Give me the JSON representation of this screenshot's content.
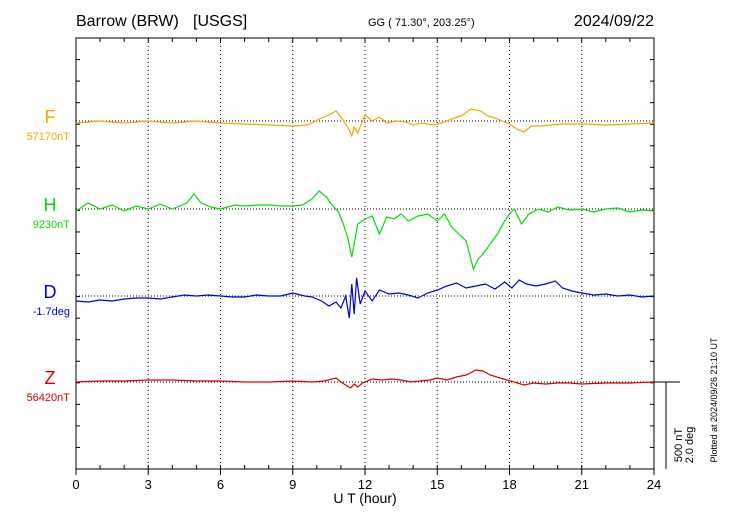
{
  "header": {
    "station": "Barrow (BRW)",
    "network": "[USGS]",
    "coords_label": "GG ( 71.30°, 203.25°)",
    "date": "2024/09/22"
  },
  "footer": {
    "plotted_note": "Plotted at 2024/09/26 21:10 UT"
  },
  "scale_bar": {
    "nt_label": "500 nT",
    "deg_label": "2.0 deg",
    "nt_value": 500,
    "deg_value": 2.0
  },
  "chart_data": {
    "type": "line",
    "title": "Barrow (BRW)  [USGS]",
    "xlabel": "U T (hour)",
    "ylabel": "",
    "xlim": [
      0,
      24
    ],
    "x_ticks": [
      0,
      3,
      6,
      9,
      12,
      15,
      18,
      21,
      24
    ],
    "x_tick_labels": [
      "0",
      "3",
      "6",
      "9",
      "12",
      "15",
      "18",
      "21",
      "24"
    ],
    "grid": true,
    "series": [
      {
        "name": "F",
        "baseline_label": "57170nT",
        "color": "#f0a800",
        "points": [
          [
            0,
            -2
          ],
          [
            1,
            0
          ],
          [
            2,
            -2
          ],
          [
            3,
            0
          ],
          [
            4,
            -2
          ],
          [
            5,
            0
          ],
          [
            6,
            -2
          ],
          [
            7,
            -3
          ],
          [
            8,
            -4
          ],
          [
            9,
            -5
          ],
          [
            9.6,
            -4
          ],
          [
            10.2,
            3
          ],
          [
            10.5,
            6
          ],
          [
            10.8,
            10
          ],
          [
            11.0,
            4
          ],
          [
            11.2,
            -3
          ],
          [
            11.35,
            -9
          ],
          [
            11.45,
            -15
          ],
          [
            11.55,
            -6
          ],
          [
            11.7,
            -12
          ],
          [
            11.85,
            -3
          ],
          [
            12.0,
            6
          ],
          [
            12.3,
            0
          ],
          [
            12.6,
            4
          ],
          [
            12.9,
            -2
          ],
          [
            13.3,
            0
          ],
          [
            13.7,
            -1
          ],
          [
            14.0,
            -4
          ],
          [
            14.4,
            -2
          ],
          [
            14.8,
            -4
          ],
          [
            15.2,
            -2
          ],
          [
            15.6,
            2
          ],
          [
            16.0,
            5
          ],
          [
            16.4,
            12
          ],
          [
            16.8,
            10
          ],
          [
            17.1,
            5
          ],
          [
            17.4,
            3
          ],
          [
            17.7,
            0
          ],
          [
            18.0,
            -3
          ],
          [
            18.3,
            -8
          ],
          [
            18.6,
            -11
          ],
          [
            18.9,
            -5
          ],
          [
            19.3,
            -5
          ],
          [
            19.7,
            -4
          ],
          [
            20.2,
            -3
          ],
          [
            20.7,
            -3
          ],
          [
            21.2,
            -3
          ],
          [
            22,
            -4
          ],
          [
            23,
            -3
          ],
          [
            24,
            -2
          ]
        ]
      },
      {
        "name": "H",
        "baseline_label": "9230nT",
        "color": "#00dd00",
        "points": [
          [
            0,
            -2
          ],
          [
            0.5,
            6
          ],
          [
            1,
            0
          ],
          [
            1.5,
            4
          ],
          [
            2,
            -2
          ],
          [
            2.5,
            3
          ],
          [
            3,
            0
          ],
          [
            3.5,
            5
          ],
          [
            4,
            0
          ],
          [
            4.6,
            6
          ],
          [
            4.9,
            15
          ],
          [
            5.2,
            6
          ],
          [
            5.6,
            2
          ],
          [
            6,
            0
          ],
          [
            6.6,
            4
          ],
          [
            7,
            3
          ],
          [
            7.6,
            4
          ],
          [
            8,
            4
          ],
          [
            8.6,
            3
          ],
          [
            9,
            3
          ],
          [
            9.4,
            4
          ],
          [
            9.8,
            10
          ],
          [
            10.1,
            18
          ],
          [
            10.4,
            12
          ],
          [
            10.6,
            5
          ],
          [
            10.9,
            -3
          ],
          [
            11.1,
            -15
          ],
          [
            11.3,
            -30
          ],
          [
            11.45,
            -48
          ],
          [
            11.55,
            -35
          ],
          [
            11.7,
            -15
          ],
          [
            12.0,
            -10
          ],
          [
            12.3,
            -7
          ],
          [
            12.6,
            -25
          ],
          [
            12.9,
            -8
          ],
          [
            13.2,
            -10
          ],
          [
            13.5,
            -5
          ],
          [
            13.8,
            -12
          ],
          [
            14.2,
            -7
          ],
          [
            14.6,
            -5
          ],
          [
            15.0,
            -12
          ],
          [
            15.3,
            -5
          ],
          [
            15.6,
            -18
          ],
          [
            15.9,
            -25
          ],
          [
            16.2,
            -32
          ],
          [
            16.5,
            -60
          ],
          [
            16.7,
            -50
          ],
          [
            16.9,
            -45
          ],
          [
            17.2,
            -35
          ],
          [
            17.5,
            -25
          ],
          [
            17.8,
            -12
          ],
          [
            18.0,
            -5
          ],
          [
            18.2,
            0
          ],
          [
            18.5,
            -15
          ],
          [
            18.8,
            -5
          ],
          [
            19.2,
            0
          ],
          [
            19.6,
            -3
          ],
          [
            20.0,
            2
          ],
          [
            20.5,
            -1
          ],
          [
            21.0,
            0
          ],
          [
            21.5,
            -3
          ],
          [
            22,
            0
          ],
          [
            22.5,
            1
          ],
          [
            23,
            -3
          ],
          [
            23.5,
            -1
          ],
          [
            24,
            -2
          ]
        ]
      },
      {
        "name": "D",
        "baseline_label": "-1.7deg",
        "color": "#0000dd",
        "points": [
          [
            0,
            -5
          ],
          [
            0.5,
            -6
          ],
          [
            1,
            -4
          ],
          [
            1.5,
            -5
          ],
          [
            2,
            -3
          ],
          [
            2.5,
            -2
          ],
          [
            3,
            -2
          ],
          [
            3.5,
            -3
          ],
          [
            4,
            -1
          ],
          [
            4.5,
            1
          ],
          [
            5,
            0
          ],
          [
            5.5,
            1
          ],
          [
            6,
            0
          ],
          [
            6.5,
            -1
          ],
          [
            7,
            -1
          ],
          [
            7.5,
            1
          ],
          [
            8,
            0
          ],
          [
            8.5,
            0
          ],
          [
            9,
            3
          ],
          [
            9.5,
            0
          ],
          [
            9.8,
            -1
          ],
          [
            10.2,
            -5
          ],
          [
            10.5,
            -10
          ],
          [
            10.8,
            -6
          ],
          [
            11.0,
            -12
          ],
          [
            11.2,
            0
          ],
          [
            11.35,
            -22
          ],
          [
            11.45,
            12
          ],
          [
            11.55,
            -18
          ],
          [
            11.65,
            18
          ],
          [
            11.8,
            -8
          ],
          [
            12.0,
            5
          ],
          [
            12.3,
            -5
          ],
          [
            12.6,
            6
          ],
          [
            13.0,
            2
          ],
          [
            13.4,
            3
          ],
          [
            13.8,
            1
          ],
          [
            14.2,
            -2
          ],
          [
            14.6,
            3
          ],
          [
            15.0,
            6
          ],
          [
            15.4,
            10
          ],
          [
            15.8,
            13
          ],
          [
            16.2,
            8
          ],
          [
            16.6,
            10
          ],
          [
            17.0,
            12
          ],
          [
            17.4,
            7
          ],
          [
            17.8,
            14
          ],
          [
            18.1,
            8
          ],
          [
            18.4,
            16
          ],
          [
            18.7,
            12
          ],
          [
            19.1,
            10
          ],
          [
            19.5,
            12
          ],
          [
            19.9,
            15
          ],
          [
            20.2,
            8
          ],
          [
            20.6,
            5
          ],
          [
            21.0,
            3
          ],
          [
            21.5,
            1
          ],
          [
            22,
            2
          ],
          [
            22.5,
            0
          ],
          [
            23,
            1
          ],
          [
            23.5,
            -1
          ],
          [
            24,
            0
          ]
        ]
      },
      {
        "name": "Z",
        "baseline_label": "56420nT",
        "color": "#dd0000",
        "points": [
          [
            0,
            0
          ],
          [
            1,
            1
          ],
          [
            2,
            1
          ],
          [
            3,
            2
          ],
          [
            4,
            2
          ],
          [
            5,
            1
          ],
          [
            6,
            1
          ],
          [
            7,
            0
          ],
          [
            8,
            0
          ],
          [
            9,
            1
          ],
          [
            9.8,
            0
          ],
          [
            10.3,
            1
          ],
          [
            10.8,
            4
          ],
          [
            11.0,
            0
          ],
          [
            11.2,
            -3
          ],
          [
            11.4,
            -6
          ],
          [
            11.55,
            -2
          ],
          [
            11.7,
            -5
          ],
          [
            11.9,
            -1
          ],
          [
            12.3,
            3
          ],
          [
            12.7,
            2
          ],
          [
            13.1,
            3
          ],
          [
            13.5,
            2
          ],
          [
            13.9,
            0
          ],
          [
            14.3,
            1
          ],
          [
            14.7,
            2
          ],
          [
            15.0,
            4
          ],
          [
            15.4,
            2
          ],
          [
            15.8,
            5
          ],
          [
            16.2,
            7
          ],
          [
            16.6,
            12
          ],
          [
            16.9,
            11
          ],
          [
            17.2,
            7
          ],
          [
            17.6,
            4
          ],
          [
            17.9,
            2
          ],
          [
            18.2,
            0
          ],
          [
            18.6,
            -3
          ],
          [
            19.0,
            -1
          ],
          [
            19.5,
            -2
          ],
          [
            20.0,
            -1
          ],
          [
            20.5,
            -1
          ],
          [
            21.0,
            -2
          ],
          [
            22,
            -1
          ],
          [
            23,
            -1
          ],
          [
            24,
            0
          ]
        ]
      }
    ]
  }
}
